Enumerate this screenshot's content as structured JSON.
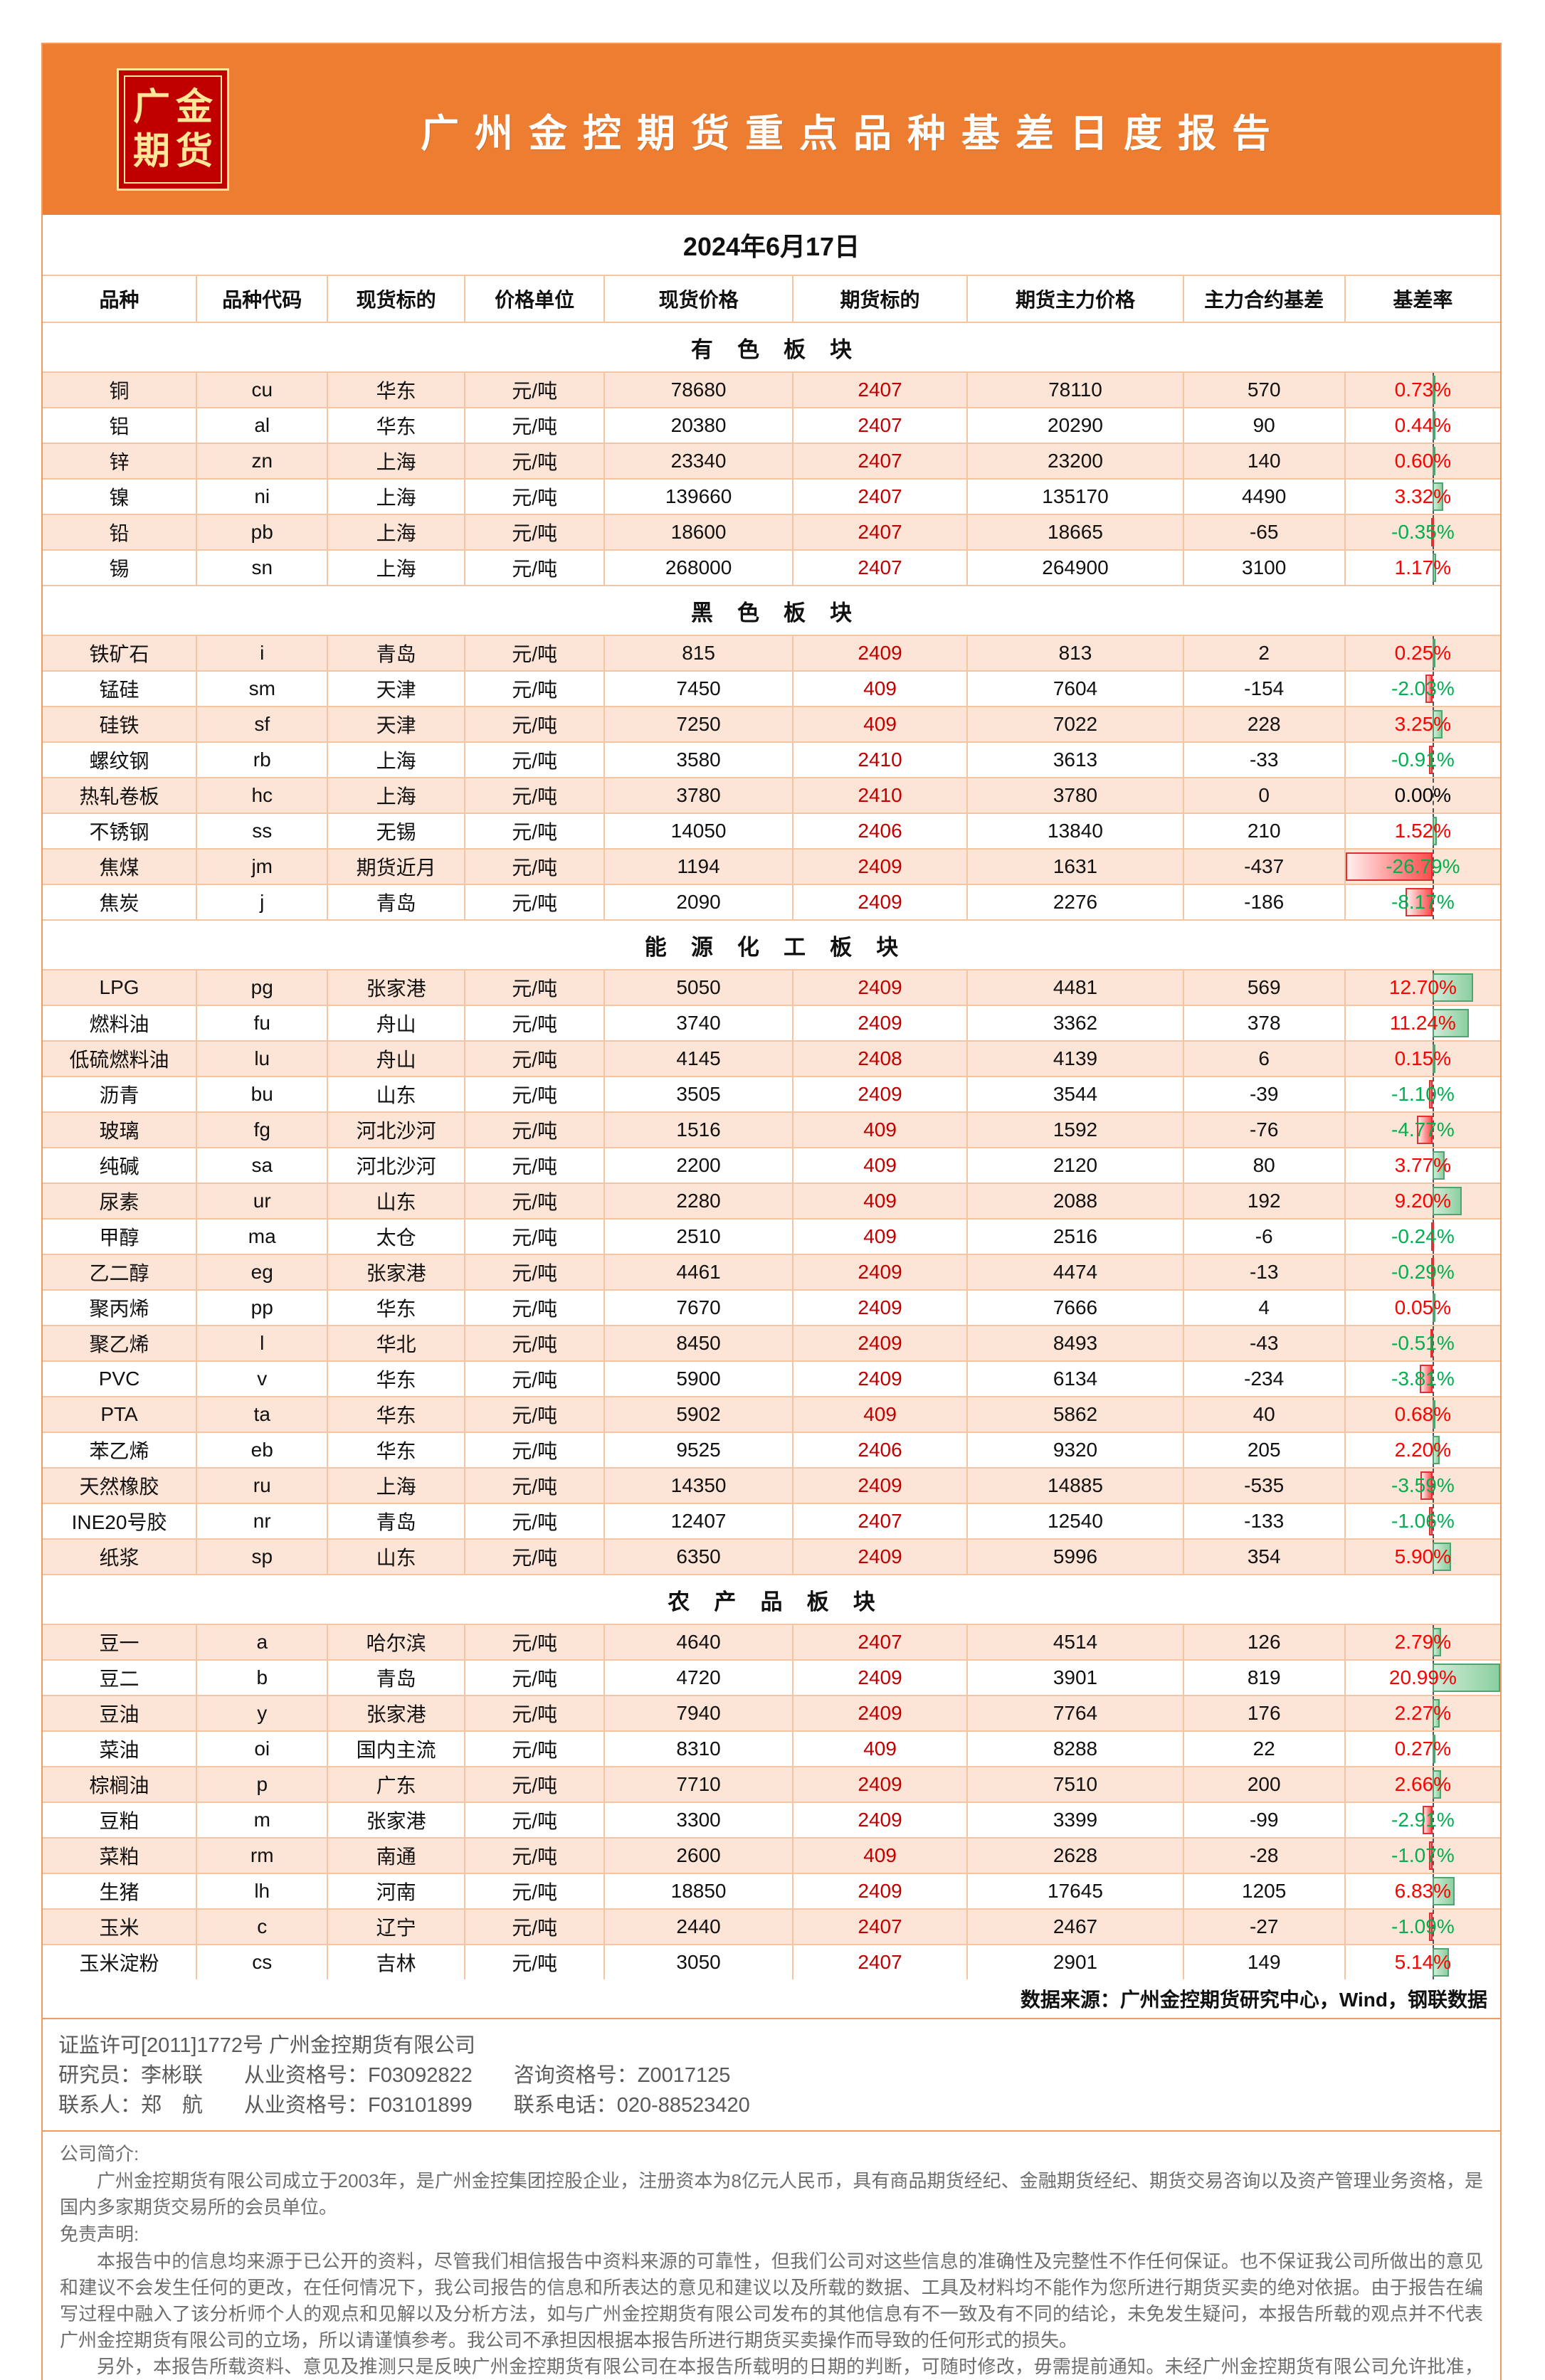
{
  "brand": {
    "logo_top": "广金",
    "logo_bottom": "期货",
    "title": "广州金控期货重点品种基差日度报告"
  },
  "report_date": "2024年6月17日",
  "table": {
    "columns": [
      "品种",
      "品种代码",
      "现货标的",
      "价格单位",
      "现货价格",
      "期货标的",
      "期货主力价格",
      "主力合约基差",
      "基差率"
    ],
    "bar_axis": {
      "axis_fraction": 0.5607,
      "positive_max": 20.99,
      "negative_max": 26.79
    },
    "source_note": "数据来源：广州金控期货研究中心，Wind，钢联数据",
    "sections": [
      {
        "title": "有色板块",
        "rows": [
          {
            "species": "铜",
            "code": "cu",
            "spot_target": "华东",
            "unit": "元/吨",
            "spot_price": "78680",
            "futures_contract": "2407",
            "futures_price": "78110",
            "basis": "570",
            "basis_rate": "0.73%"
          },
          {
            "species": "铝",
            "code": "al",
            "spot_target": "华东",
            "unit": "元/吨",
            "spot_price": "20380",
            "futures_contract": "2407",
            "futures_price": "20290",
            "basis": "90",
            "basis_rate": "0.44%"
          },
          {
            "species": "锌",
            "code": "zn",
            "spot_target": "上海",
            "unit": "元/吨",
            "spot_price": "23340",
            "futures_contract": "2407",
            "futures_price": "23200",
            "basis": "140",
            "basis_rate": "0.60%"
          },
          {
            "species": "镍",
            "code": "ni",
            "spot_target": "上海",
            "unit": "元/吨",
            "spot_price": "139660",
            "futures_contract": "2407",
            "futures_price": "135170",
            "basis": "4490",
            "basis_rate": "3.32%"
          },
          {
            "species": "铅",
            "code": "pb",
            "spot_target": "上海",
            "unit": "元/吨",
            "spot_price": "18600",
            "futures_contract": "2407",
            "futures_price": "18665",
            "basis": "-65",
            "basis_rate": "-0.35%"
          },
          {
            "species": "锡",
            "code": "sn",
            "spot_target": "上海",
            "unit": "元/吨",
            "spot_price": "268000",
            "futures_contract": "2407",
            "futures_price": "264900",
            "basis": "3100",
            "basis_rate": "1.17%"
          }
        ]
      },
      {
        "title": "黑色板块",
        "rows": [
          {
            "species": "铁矿石",
            "code": "i",
            "spot_target": "青岛",
            "unit": "元/吨",
            "spot_price": "815",
            "futures_contract": "2409",
            "futures_price": "813",
            "basis": "2",
            "basis_rate": "0.25%"
          },
          {
            "species": "锰硅",
            "code": "sm",
            "spot_target": "天津",
            "unit": "元/吨",
            "spot_price": "7450",
            "futures_contract": "409",
            "futures_price": "7604",
            "basis": "-154",
            "basis_rate": "-2.03%"
          },
          {
            "species": "硅铁",
            "code": "sf",
            "spot_target": "天津",
            "unit": "元/吨",
            "spot_price": "7250",
            "futures_contract": "409",
            "futures_price": "7022",
            "basis": "228",
            "basis_rate": "3.25%"
          },
          {
            "species": "螺纹钢",
            "code": "rb",
            "spot_target": "上海",
            "unit": "元/吨",
            "spot_price": "3580",
            "futures_contract": "2410",
            "futures_price": "3613",
            "basis": "-33",
            "basis_rate": "-0.91%"
          },
          {
            "species": "热轧卷板",
            "code": "hc",
            "spot_target": "上海",
            "unit": "元/吨",
            "spot_price": "3780",
            "futures_contract": "2410",
            "futures_price": "3780",
            "basis": "0",
            "basis_rate": "0.00%"
          },
          {
            "species": "不锈钢",
            "code": "ss",
            "spot_target": "无锡",
            "unit": "元/吨",
            "spot_price": "14050",
            "futures_contract": "2406",
            "futures_price": "13840",
            "basis": "210",
            "basis_rate": "1.52%"
          },
          {
            "species": "焦煤",
            "code": "jm",
            "spot_target": "期货近月",
            "unit": "元/吨",
            "spot_price": "1194",
            "futures_contract": "2409",
            "futures_price": "1631",
            "basis": "-437",
            "basis_rate": "-26.79%"
          },
          {
            "species": "焦炭",
            "code": "j",
            "spot_target": "青岛",
            "unit": "元/吨",
            "spot_price": "2090",
            "futures_contract": "2409",
            "futures_price": "2276",
            "basis": "-186",
            "basis_rate": "-8.17%"
          }
        ]
      },
      {
        "title": "能源化工板块",
        "rows": [
          {
            "species": "LPG",
            "code": "pg",
            "spot_target": "张家港",
            "unit": "元/吨",
            "spot_price": "5050",
            "futures_contract": "2409",
            "futures_price": "4481",
            "basis": "569",
            "basis_rate": "12.70%"
          },
          {
            "species": "燃料油",
            "code": "fu",
            "spot_target": "舟山",
            "unit": "元/吨",
            "spot_price": "3740",
            "futures_contract": "2409",
            "futures_price": "3362",
            "basis": "378",
            "basis_rate": "11.24%"
          },
          {
            "species": "低硫燃料油",
            "code": "lu",
            "spot_target": "舟山",
            "unit": "元/吨",
            "spot_price": "4145",
            "futures_contract": "2408",
            "futures_price": "4139",
            "basis": "6",
            "basis_rate": "0.15%"
          },
          {
            "species": "沥青",
            "code": "bu",
            "spot_target": "山东",
            "unit": "元/吨",
            "spot_price": "3505",
            "futures_contract": "2409",
            "futures_price": "3544",
            "basis": "-39",
            "basis_rate": "-1.10%"
          },
          {
            "species": "玻璃",
            "code": "fg",
            "spot_target": "河北沙河",
            "unit": "元/吨",
            "spot_price": "1516",
            "futures_contract": "409",
            "futures_price": "1592",
            "basis": "-76",
            "basis_rate": "-4.77%"
          },
          {
            "species": "纯碱",
            "code": "sa",
            "spot_target": "河北沙河",
            "unit": "元/吨",
            "spot_price": "2200",
            "futures_contract": "409",
            "futures_price": "2120",
            "basis": "80",
            "basis_rate": "3.77%"
          },
          {
            "species": "尿素",
            "code": "ur",
            "spot_target": "山东",
            "unit": "元/吨",
            "spot_price": "2280",
            "futures_contract": "409",
            "futures_price": "2088",
            "basis": "192",
            "basis_rate": "9.20%"
          },
          {
            "species": "甲醇",
            "code": "ma",
            "spot_target": "太仓",
            "unit": "元/吨",
            "spot_price": "2510",
            "futures_contract": "409",
            "futures_price": "2516",
            "basis": "-6",
            "basis_rate": "-0.24%"
          },
          {
            "species": "乙二醇",
            "code": "eg",
            "spot_target": "张家港",
            "unit": "元/吨",
            "spot_price": "4461",
            "futures_contract": "2409",
            "futures_price": "4474",
            "basis": "-13",
            "basis_rate": "-0.29%"
          },
          {
            "species": "聚丙烯",
            "code": "pp",
            "spot_target": "华东",
            "unit": "元/吨",
            "spot_price": "7670",
            "futures_contract": "2409",
            "futures_price": "7666",
            "basis": "4",
            "basis_rate": "0.05%"
          },
          {
            "species": "聚乙烯",
            "code": "l",
            "spot_target": "华北",
            "unit": "元/吨",
            "spot_price": "8450",
            "futures_contract": "2409",
            "futures_price": "8493",
            "basis": "-43",
            "basis_rate": "-0.51%"
          },
          {
            "species": "PVC",
            "code": "v",
            "spot_target": "华东",
            "unit": "元/吨",
            "spot_price": "5900",
            "futures_contract": "2409",
            "futures_price": "6134",
            "basis": "-234",
            "basis_rate": "-3.81%"
          },
          {
            "species": "PTA",
            "code": "ta",
            "spot_target": "华东",
            "unit": "元/吨",
            "spot_price": "5902",
            "futures_contract": "409",
            "futures_price": "5862",
            "basis": "40",
            "basis_rate": "0.68%"
          },
          {
            "species": "苯乙烯",
            "code": "eb",
            "spot_target": "华东",
            "unit": "元/吨",
            "spot_price": "9525",
            "futures_contract": "2406",
            "futures_price": "9320",
            "basis": "205",
            "basis_rate": "2.20%"
          },
          {
            "species": "天然橡胶",
            "code": "ru",
            "spot_target": "上海",
            "unit": "元/吨",
            "spot_price": "14350",
            "futures_contract": "2409",
            "futures_price": "14885",
            "basis": "-535",
            "basis_rate": "-3.59%"
          },
          {
            "species": "INE20号胶",
            "code": "nr",
            "spot_target": "青岛",
            "unit": "元/吨",
            "spot_price": "12407",
            "futures_contract": "2407",
            "futures_price": "12540",
            "basis": "-133",
            "basis_rate": "-1.06%"
          },
          {
            "species": "纸浆",
            "code": "sp",
            "spot_target": "山东",
            "unit": "元/吨",
            "spot_price": "6350",
            "futures_contract": "2409",
            "futures_price": "5996",
            "basis": "354",
            "basis_rate": "5.90%"
          }
        ]
      },
      {
        "title": "农产品板块",
        "rows": [
          {
            "species": "豆一",
            "code": "a",
            "spot_target": "哈尔滨",
            "unit": "元/吨",
            "spot_price": "4640",
            "futures_contract": "2407",
            "futures_price": "4514",
            "basis": "126",
            "basis_rate": "2.79%"
          },
          {
            "species": "豆二",
            "code": "b",
            "spot_target": "青岛",
            "unit": "元/吨",
            "spot_price": "4720",
            "futures_contract": "2409",
            "futures_price": "3901",
            "basis": "819",
            "basis_rate": "20.99%"
          },
          {
            "species": "豆油",
            "code": "y",
            "spot_target": "张家港",
            "unit": "元/吨",
            "spot_price": "7940",
            "futures_contract": "2409",
            "futures_price": "7764",
            "basis": "176",
            "basis_rate": "2.27%"
          },
          {
            "species": "菜油",
            "code": "oi",
            "spot_target": "国内主流",
            "unit": "元/吨",
            "spot_price": "8310",
            "futures_contract": "409",
            "futures_price": "8288",
            "basis": "22",
            "basis_rate": "0.27%"
          },
          {
            "species": "棕榈油",
            "code": "p",
            "spot_target": "广东",
            "unit": "元/吨",
            "spot_price": "7710",
            "futures_contract": "2409",
            "futures_price": "7510",
            "basis": "200",
            "basis_rate": "2.66%"
          },
          {
            "species": "豆粕",
            "code": "m",
            "spot_target": "张家港",
            "unit": "元/吨",
            "spot_price": "3300",
            "futures_contract": "2409",
            "futures_price": "3399",
            "basis": "-99",
            "basis_rate": "-2.91%"
          },
          {
            "species": "菜粕",
            "code": "rm",
            "spot_target": "南通",
            "unit": "元/吨",
            "spot_price": "2600",
            "futures_contract": "409",
            "futures_price": "2628",
            "basis": "-28",
            "basis_rate": "-1.07%"
          },
          {
            "species": "生猪",
            "code": "lh",
            "spot_target": "河南",
            "unit": "元/吨",
            "spot_price": "18850",
            "futures_contract": "2409",
            "futures_price": "17645",
            "basis": "1205",
            "basis_rate": "6.83%"
          },
          {
            "species": "玉米",
            "code": "c",
            "spot_target": "辽宁",
            "unit": "元/吨",
            "spot_price": "2440",
            "futures_contract": "2407",
            "futures_price": "2467",
            "basis": "-27",
            "basis_rate": "-1.09%"
          },
          {
            "species": "玉米淀粉",
            "code": "cs",
            "spot_target": "吉林",
            "unit": "元/吨",
            "spot_price": "3050",
            "futures_contract": "2407",
            "futures_price": "2901",
            "basis": "149",
            "basis_rate": "5.14%"
          }
        ]
      }
    ]
  },
  "footer": {
    "license_line": "证监许可[2011]1772号  广州金控期货有限公司",
    "researcher_line": "研究员：李彬联　　从业资格号：F03092822　　咨询资格号：Z0017125",
    "contact_line": "联系人：郑　航　　从业资格号：F03101899　　联系电话：020-88523420",
    "intro_heading": "公司简介:",
    "intro_text": "广州金控期货有限公司成立于2003年，是广州金控集团控股企业，注册资本为8亿元人民币，具有商品期货经纪、金融期货经纪、期货交易咨询以及资产管理业务资格，是国内多家期货交易所的会员单位。",
    "disclaimer_heading": "免责声明:",
    "disclaimer_p1": "本报告中的信息均来源于已公开的资料，尽管我们相信报告中资料来源的可靠性，但我们公司对这些信息的准确性及完整性不作任何保证。也不保证我公司所做出的意见和建议不会发生任何的更改，在任何情况下，我公司报告的信息和所表达的意见和建议以及所载的数据、工具及材料均不能作为您所进行期货买卖的绝对依据。由于报告在编写过程中融入了该分析师个人的观点和见解以及分析方法，如与广州金控期货有限公司发布的其他信息有不一致及有不同的结论，未免发生疑问，本报告所载的观点并不代表广州金控期货有限公司的立场，所以请谨慎参考。我公司不承担因根据本报告所进行期货买卖操作而导致的任何形式的损失。",
    "disclaimer_p2": "另外，本报告所载资料、意见及推测只是反映广州金控期货有限公司在本报告所载明的日期的判断，可随时修改，毋需提前通知。未经广州金控期货有限公司允许批准，本报告内容不得以任何范式传送、复印或派发此报告的资料、内容或复印本予以任何其他人，或投入商业使用。如遵循原文本意的引用、刊发，需注明出处“广州金控期货有限公司”，并保留我公司的一切权利。"
  },
  "colors": {
    "banner_orange": "#ED7D31",
    "logo_red": "#C00000",
    "logo_gold": "#FFE699",
    "row_alt_pink": "#FCE4D6",
    "grid_line": "#F5C4A0",
    "contract_text": "#C00000",
    "rate_positive_text": "#FE0000",
    "rate_negative_text": "#00B050",
    "bar_positive": "#63BE7B",
    "bar_negative": "#FF4D4D"
  }
}
